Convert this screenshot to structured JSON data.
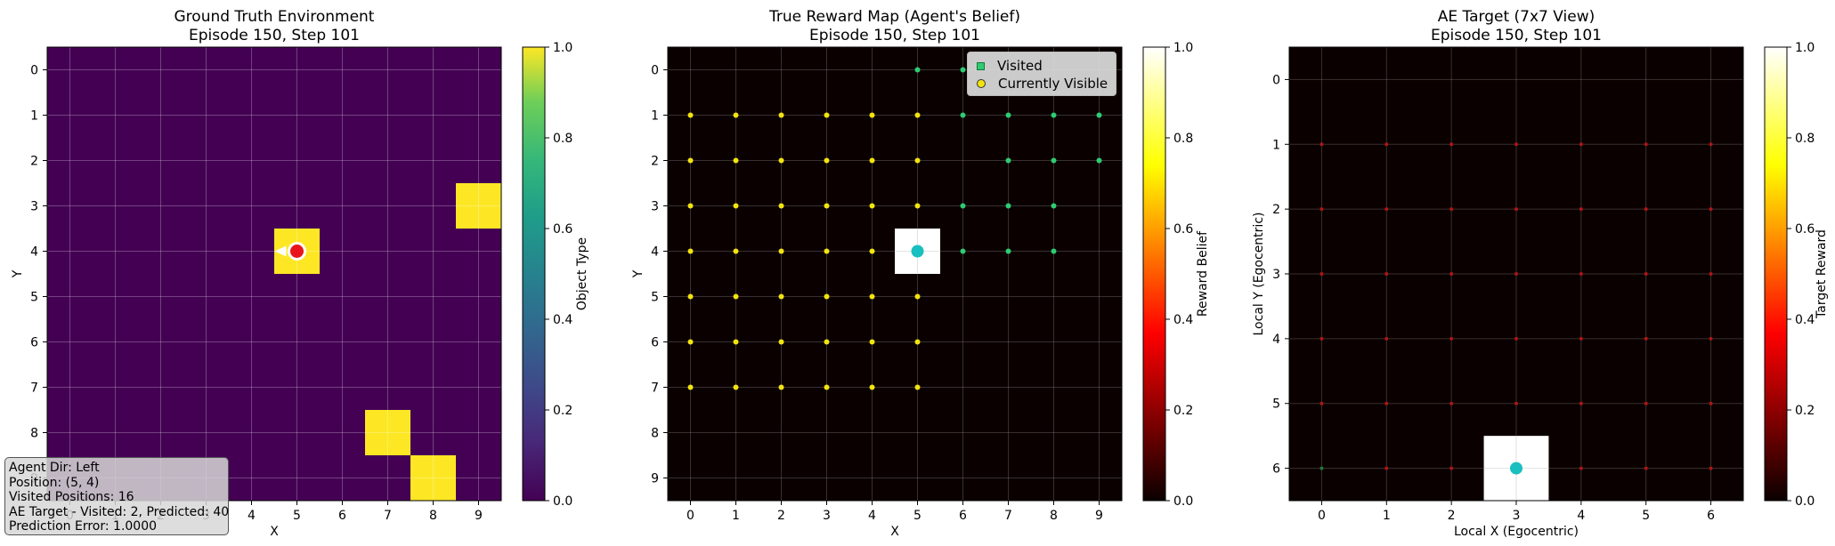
{
  "panels": [
    {
      "title_line1": "Ground Truth Environment",
      "title_line2": "Episode 150, Step 101",
      "xlabel": "X",
      "ylabel": "Y",
      "colorbar_label": "Object Type",
      "colormap": "viridis",
      "xticks": [
        "0",
        "1",
        "2",
        "3",
        "4",
        "5",
        "6",
        "7",
        "8",
        "9"
      ],
      "yticks": [
        "0",
        "1",
        "2",
        "3",
        "4",
        "5",
        "6",
        "7",
        "8",
        "9"
      ],
      "cbar_ticks": [
        "0.0",
        "0.2",
        "0.4",
        "0.6",
        "0.8",
        "1.0"
      ]
    },
    {
      "title_line1": "True Reward Map (Agent's Belief)",
      "title_line2": "Episode 150, Step 101",
      "xlabel": "X",
      "ylabel": "Y",
      "colorbar_label": "Reward Belief",
      "colormap": "hot",
      "xticks": [
        "0",
        "1",
        "2",
        "3",
        "4",
        "5",
        "6",
        "7",
        "8",
        "9"
      ],
      "yticks": [
        "0",
        "1",
        "2",
        "3",
        "4",
        "5",
        "6",
        "7",
        "8",
        "9"
      ],
      "cbar_ticks": [
        "0.0",
        "0.2",
        "0.4",
        "0.6",
        "0.8",
        "1.0"
      ],
      "legend": {
        "visited": "Visited",
        "visible": "Currently Visible"
      }
    },
    {
      "title_line1": "AE Target (7x7 View)",
      "title_line2": "Episode 150, Step 101",
      "xlabel": "Local X (Egocentric)",
      "ylabel": "Local Y (Egocentric)",
      "colorbar_label": "Target Reward",
      "colormap": "hot",
      "xticks": [
        "0",
        "1",
        "2",
        "3",
        "4",
        "5",
        "6"
      ],
      "yticks": [
        "0",
        "1",
        "2",
        "3",
        "4",
        "5",
        "6"
      ],
      "cbar_ticks": [
        "0.0",
        "0.2",
        "0.4",
        "0.6",
        "0.8",
        "1.0"
      ]
    }
  ],
  "info_box": [
    "Agent Dir: Left",
    "Position: (5, 4)",
    "Visited Positions: 16",
    "AE Target - Visited: 2, Predicted: 40",
    "Prediction Error: 1.0000"
  ],
  "colors": {
    "viridis_low": "#440154",
    "viridis_high": "#fde725",
    "hot_low": "#0b0000",
    "agent": "#e8161b",
    "agent_marker": "#1abfbf",
    "visited": "#2ecc71",
    "visible": "#f1e40f"
  },
  "chart_data": [
    {
      "type": "heatmap",
      "title": "Ground Truth Environment\nEpisode 150, Step 101",
      "xlabel": "X",
      "ylabel": "Y",
      "colorbar": "Object Type",
      "clim": [
        0,
        1
      ],
      "grid_size": [
        10,
        10
      ],
      "cells_value_1": [
        [
          9,
          3
        ],
        [
          5,
          4
        ],
        [
          7,
          8
        ],
        [
          8,
          9
        ]
      ],
      "background_value": 0,
      "agent": {
        "x": 5,
        "y": 4,
        "dir": "Left"
      }
    },
    {
      "type": "heatmap",
      "title": "True Reward Map (Agent's Belief)\nEpisode 150, Step 101",
      "xlabel": "X",
      "ylabel": "Y",
      "colorbar": "Reward Belief",
      "clim": [
        0,
        1
      ],
      "grid_size": [
        10,
        10
      ],
      "cells_value_1": [
        [
          5,
          4
        ]
      ],
      "background_value": 0,
      "agent": {
        "x": 5,
        "y": 4
      },
      "visited": [
        [
          5,
          0
        ],
        [
          6,
          0
        ],
        [
          6,
          1
        ],
        [
          7,
          1
        ],
        [
          8,
          1
        ],
        [
          9,
          1
        ],
        [
          7,
          2
        ],
        [
          8,
          2
        ],
        [
          9,
          2
        ],
        [
          7,
          3
        ],
        [
          8,
          3
        ],
        [
          6,
          4
        ],
        [
          7,
          4
        ],
        [
          8,
          4
        ],
        [
          5,
          4
        ],
        [
          6,
          3
        ]
      ],
      "visible_rows": [
        1,
        7
      ],
      "visible_cols": [
        0,
        5
      ]
    },
    {
      "type": "heatmap",
      "title": "AE Target (7x7 View)\nEpisode 150, Step 101",
      "xlabel": "Local X (Egocentric)",
      "ylabel": "Local Y (Egocentric)",
      "colorbar": "Target Reward",
      "clim": [
        0,
        1
      ],
      "grid_size": [
        7,
        7
      ],
      "cells_value_1": [
        [
          3,
          6
        ]
      ],
      "background_value": 0,
      "agent": {
        "x": 3,
        "y": 6
      }
    }
  ]
}
